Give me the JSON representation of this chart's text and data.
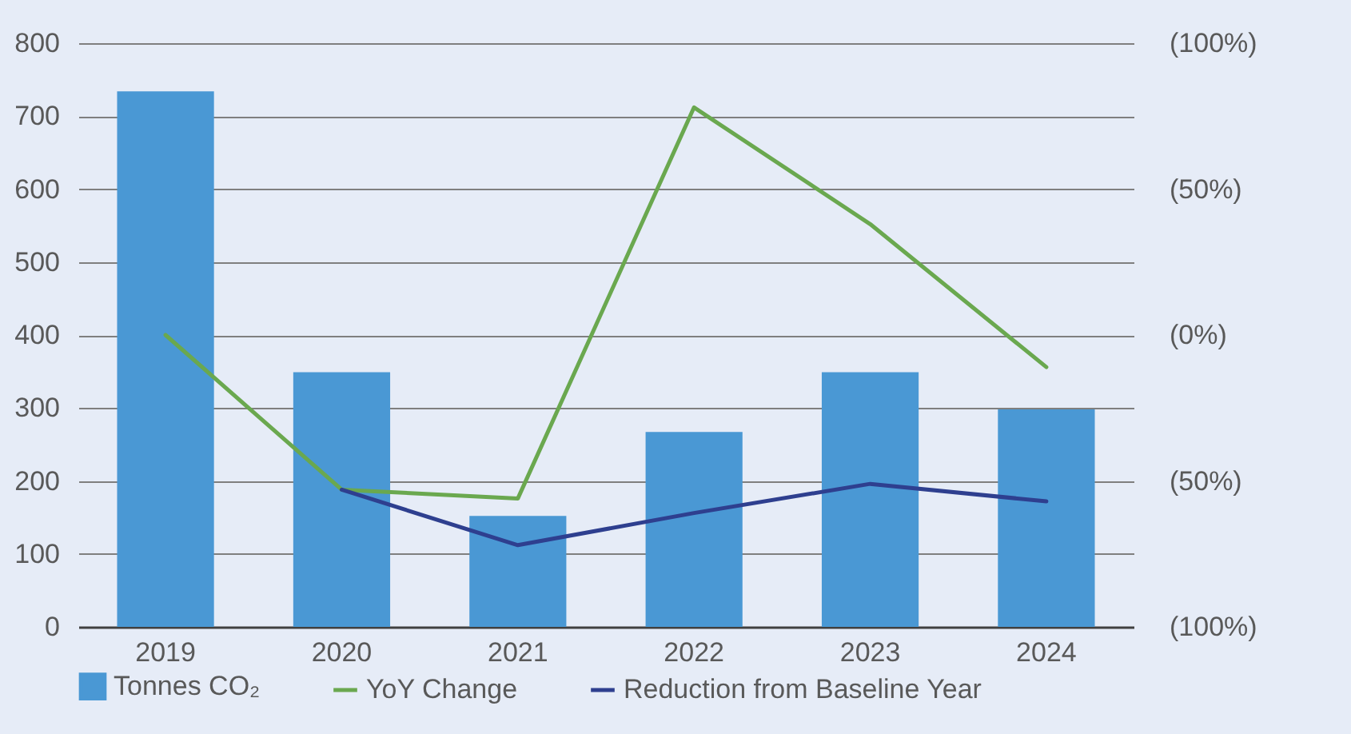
{
  "chart_data": {
    "type": "bar",
    "categories": [
      "2019",
      "2020",
      "2021",
      "2022",
      "2023",
      "2024"
    ],
    "series": [
      {
        "name": "Tonnes CO₂",
        "color": "#4a98d4",
        "values": [
          734,
          349,
          152,
          267,
          349,
          298
        ]
      },
      {
        "name": "YoY Change",
        "type": "line",
        "axis": "y2",
        "color": "#6aa84f",
        "values": [
          0,
          -53,
          -56,
          78,
          38,
          -11
        ]
      },
      {
        "name": "Reduction from Baseline Year",
        "type": "line",
        "axis": "y2",
        "color": "#2e3f8f",
        "values": [
          null,
          -53,
          -72,
          -61,
          -51,
          -57
        ]
      }
    ],
    "ylim": [
      0,
      800
    ],
    "yticks": [
      0,
      100,
      200,
      300,
      400,
      500,
      600,
      700,
      800
    ],
    "y2lim": [
      -100,
      100
    ],
    "y2ticks": [
      {
        "value": -100,
        "label": "(100%)"
      },
      {
        "value": -50,
        "label": "(50%)"
      },
      {
        "value": 0,
        "label": "(0%)"
      },
      {
        "value": 50,
        "label": "(50%)"
      },
      {
        "value": 100,
        "label": "(100%)"
      }
    ],
    "grid": "y",
    "legend": "bottom"
  }
}
